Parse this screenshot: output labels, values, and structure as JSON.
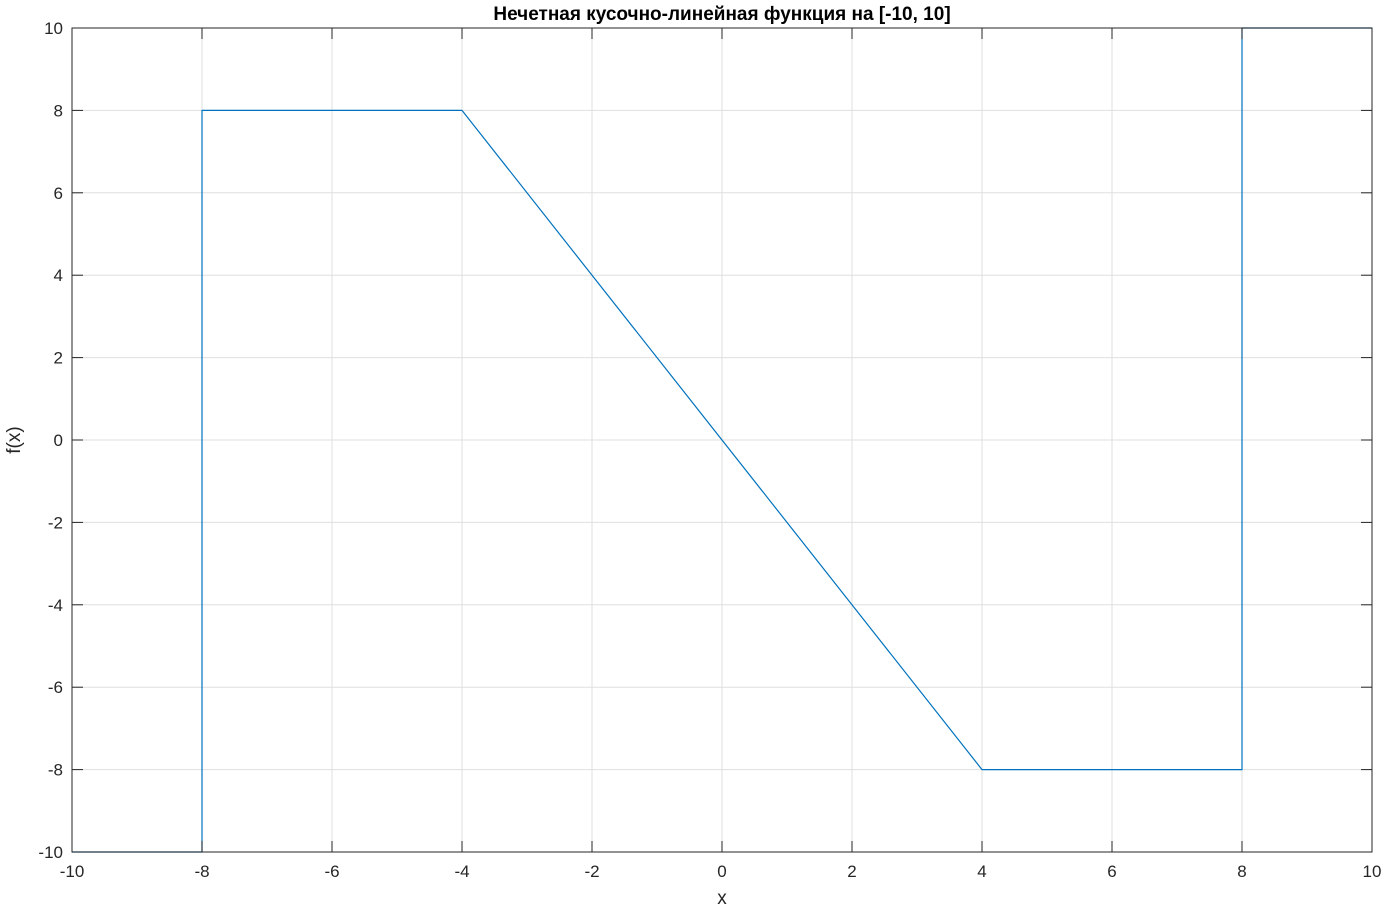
{
  "chart_data": {
    "type": "line",
    "title": "Нечетная кусочно-линейная функция на [-10, 10]",
    "xlabel": "x",
    "ylabel": "f(x)",
    "xlim": [
      -10,
      10
    ],
    "ylim": [
      -10,
      10
    ],
    "xticks": [
      -10,
      -8,
      -6,
      -4,
      -2,
      0,
      2,
      4,
      6,
      8,
      10
    ],
    "yticks": [
      -10,
      -8,
      -6,
      -4,
      -2,
      0,
      2,
      4,
      6,
      8,
      10
    ],
    "grid": true,
    "legend": "none",
    "series": [
      {
        "color": "#0072BD",
        "x": [
          -10,
          -8,
          -8,
          -4,
          4,
          8,
          8,
          10
        ],
        "y": [
          -10,
          -10,
          8,
          8,
          -8,
          -8,
          10,
          10
        ]
      }
    ]
  }
}
